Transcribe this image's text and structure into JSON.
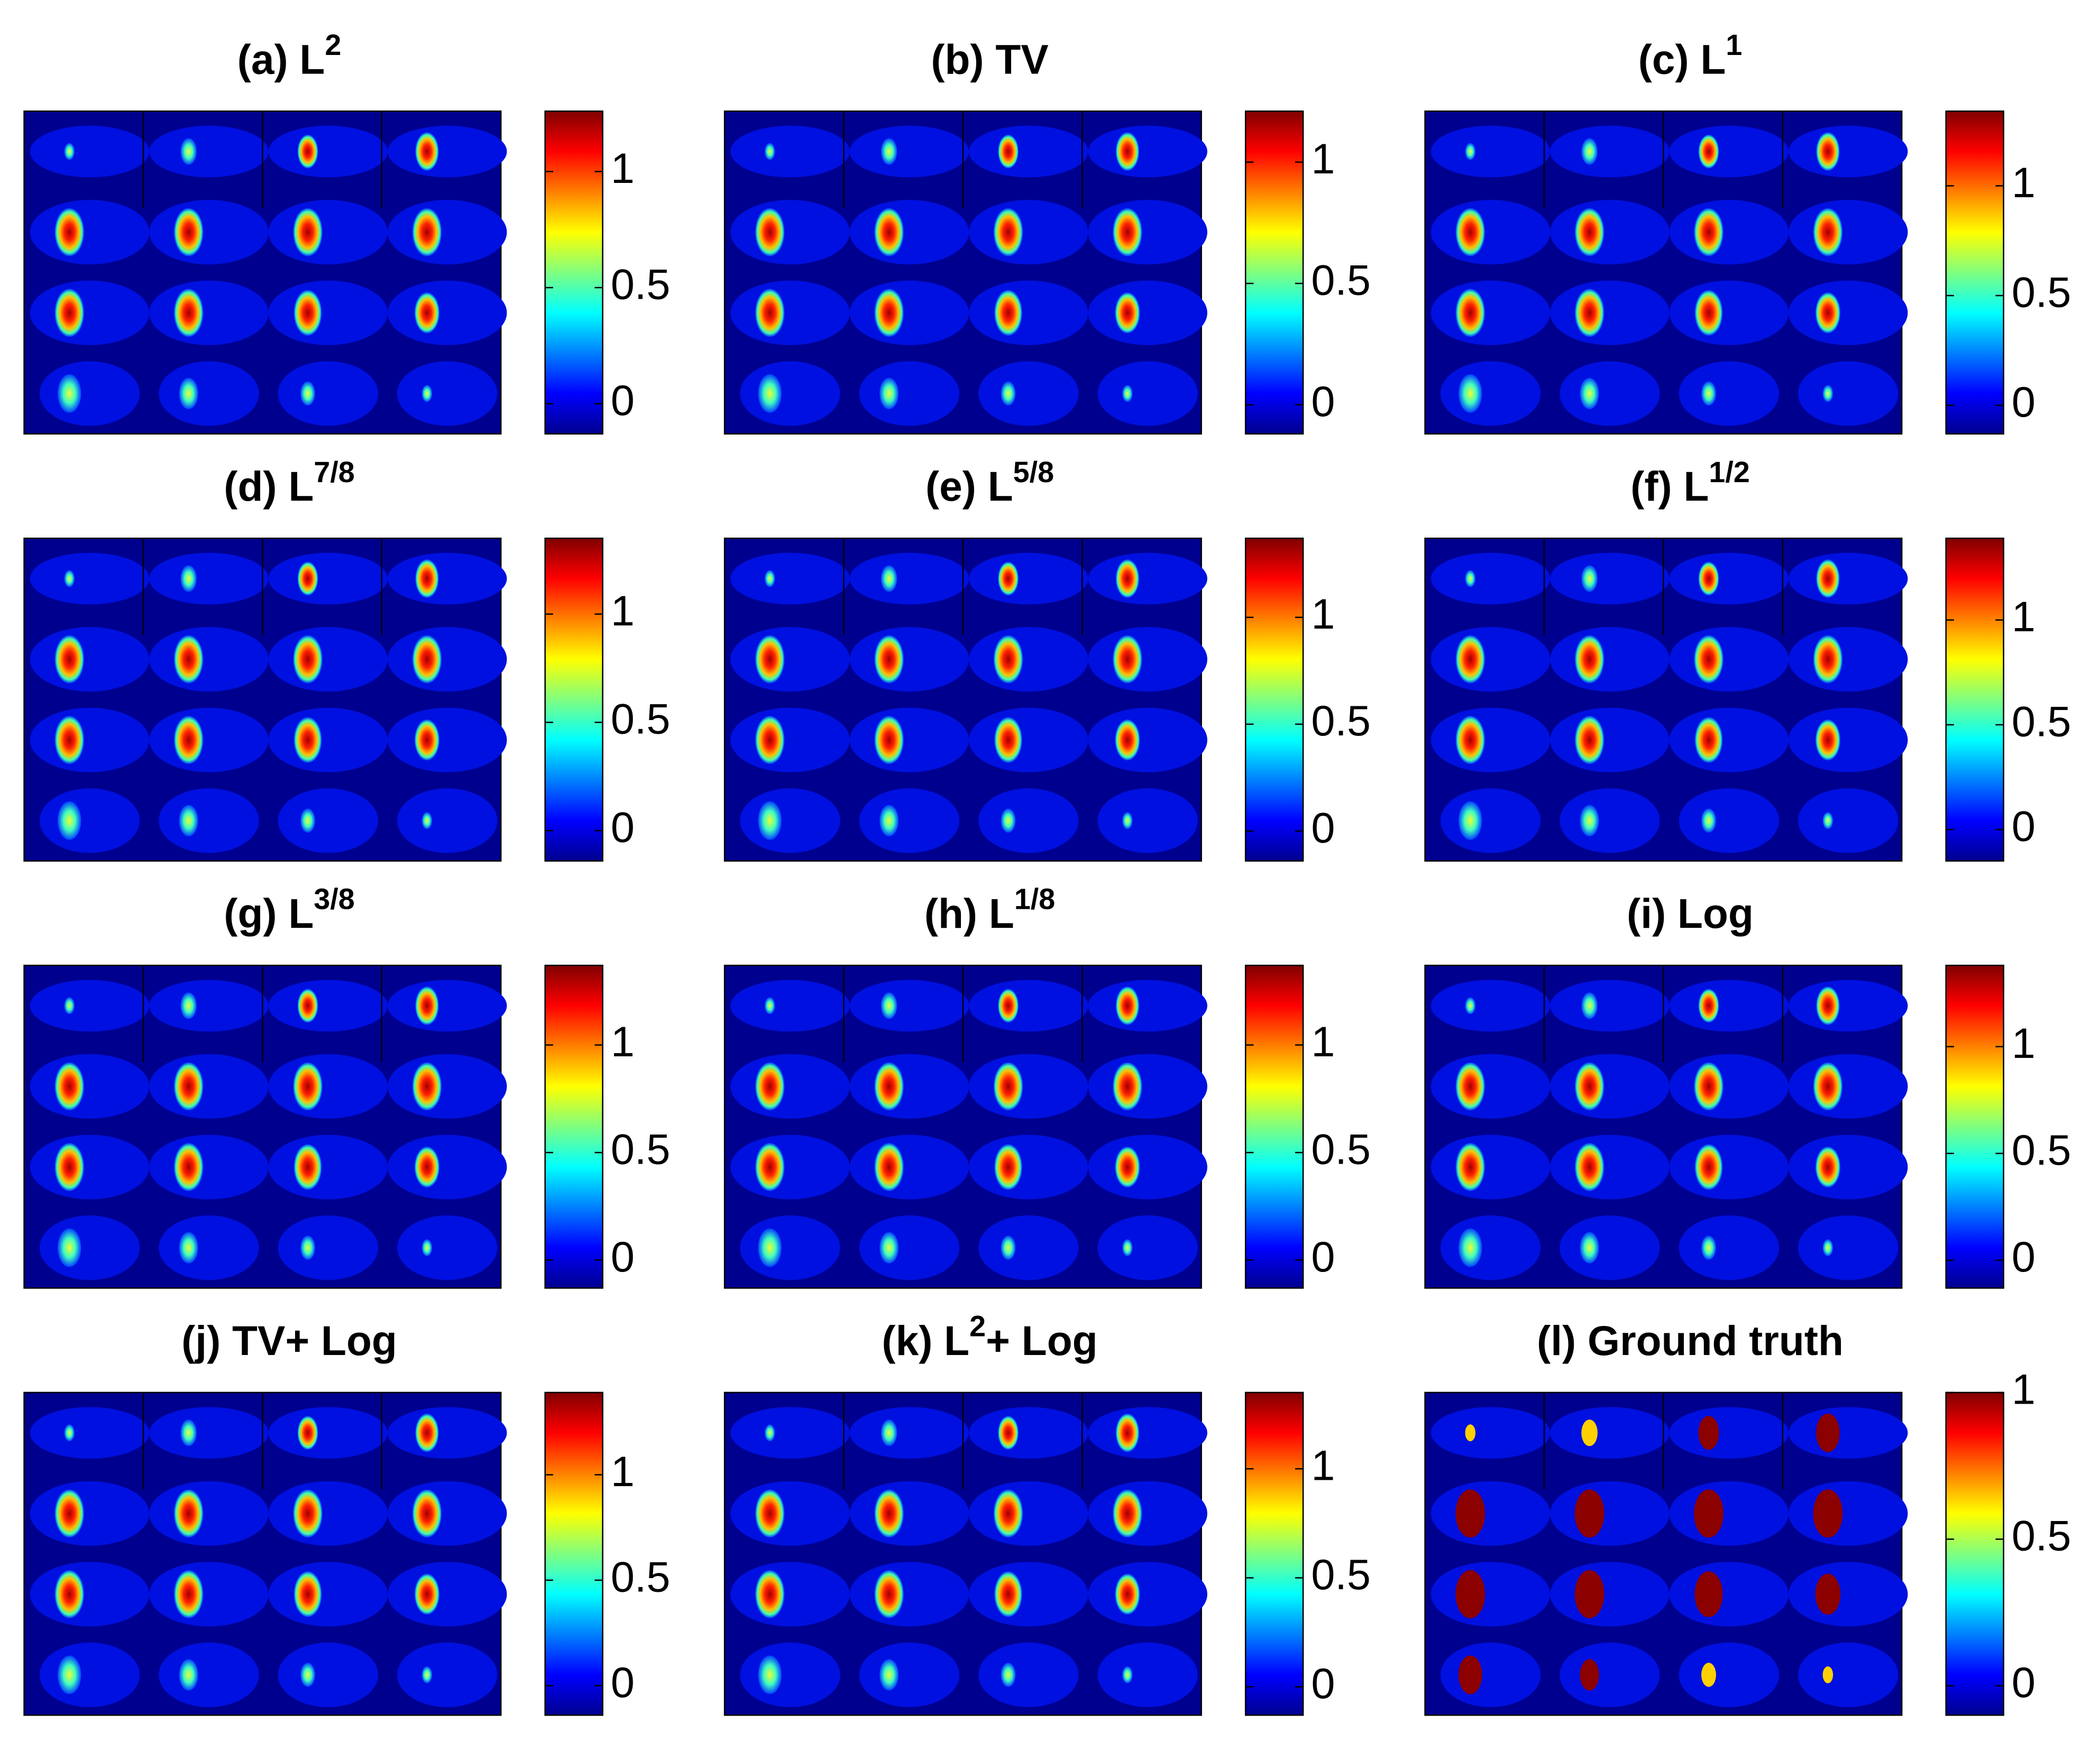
{
  "chart_data": [
    {
      "type": "image",
      "title": "(a) L",
      "title_sup": "2",
      "colormap": "jet",
      "ylim": [
        -0.13,
        1.26
      ],
      "yticks": [
        0,
        0.5,
        1
      ]
    },
    {
      "type": "image",
      "title": "(b) TV",
      "colormap": "jet",
      "ylim": [
        -0.12,
        1.21
      ],
      "yticks": [
        0,
        0.5,
        1
      ]
    },
    {
      "type": "image",
      "title": "(c) L",
      "title_sup": "1",
      "colormap": "jet",
      "ylim": [
        -0.13,
        1.34
      ],
      "yticks": [
        0,
        0.5,
        1
      ]
    },
    {
      "type": "image",
      "title": "(d) L",
      "title_sup": "7/8",
      "colormap": "jet",
      "ylim": [
        -0.14,
        1.35
      ],
      "yticks": [
        0,
        0.5,
        1
      ]
    },
    {
      "type": "image",
      "title": "(e) L",
      "title_sup": "5/8",
      "colormap": "jet",
      "ylim": [
        -0.14,
        1.37
      ],
      "yticks": [
        0,
        0.5,
        1
      ]
    },
    {
      "type": "image",
      "title": "(f) L",
      "title_sup": "1/2",
      "colormap": "jet",
      "ylim": [
        -0.15,
        1.39
      ],
      "yticks": [
        0,
        0.5,
        1
      ]
    },
    {
      "type": "image",
      "title": "(g) L",
      "title_sup": "3/8",
      "colormap": "jet",
      "ylim": [
        -0.13,
        1.37
      ],
      "yticks": [
        0,
        0.5,
        1
      ]
    },
    {
      "type": "image",
      "title": "(h) L",
      "title_sup": "1/8",
      "colormap": "jet",
      "ylim": [
        -0.13,
        1.37
      ],
      "yticks": [
        0,
        0.5,
        1
      ]
    },
    {
      "type": "image",
      "title": "(i) Log",
      "colormap": "jet",
      "ylim": [
        -0.13,
        1.38
      ],
      "yticks": [
        0,
        0.5,
        1
      ]
    },
    {
      "type": "image",
      "title": "(j) TV+ Log",
      "colormap": "jet",
      "ylim": [
        -0.14,
        1.39
      ],
      "yticks": [
        0,
        0.5,
        1
      ]
    },
    {
      "type": "image",
      "title": "(k) L",
      "title_sup": "2",
      "title_after": "+ Log",
      "colormap": "jet",
      "ylim": [
        -0.13,
        1.35
      ],
      "yticks": [
        0,
        0.5,
        1
      ]
    },
    {
      "type": "image",
      "title": "(l) Ground truth",
      "colormap": "jet",
      "ylim": [
        -0.1,
        1
      ],
      "yticks": [
        0,
        0.5,
        1
      ]
    }
  ]
}
